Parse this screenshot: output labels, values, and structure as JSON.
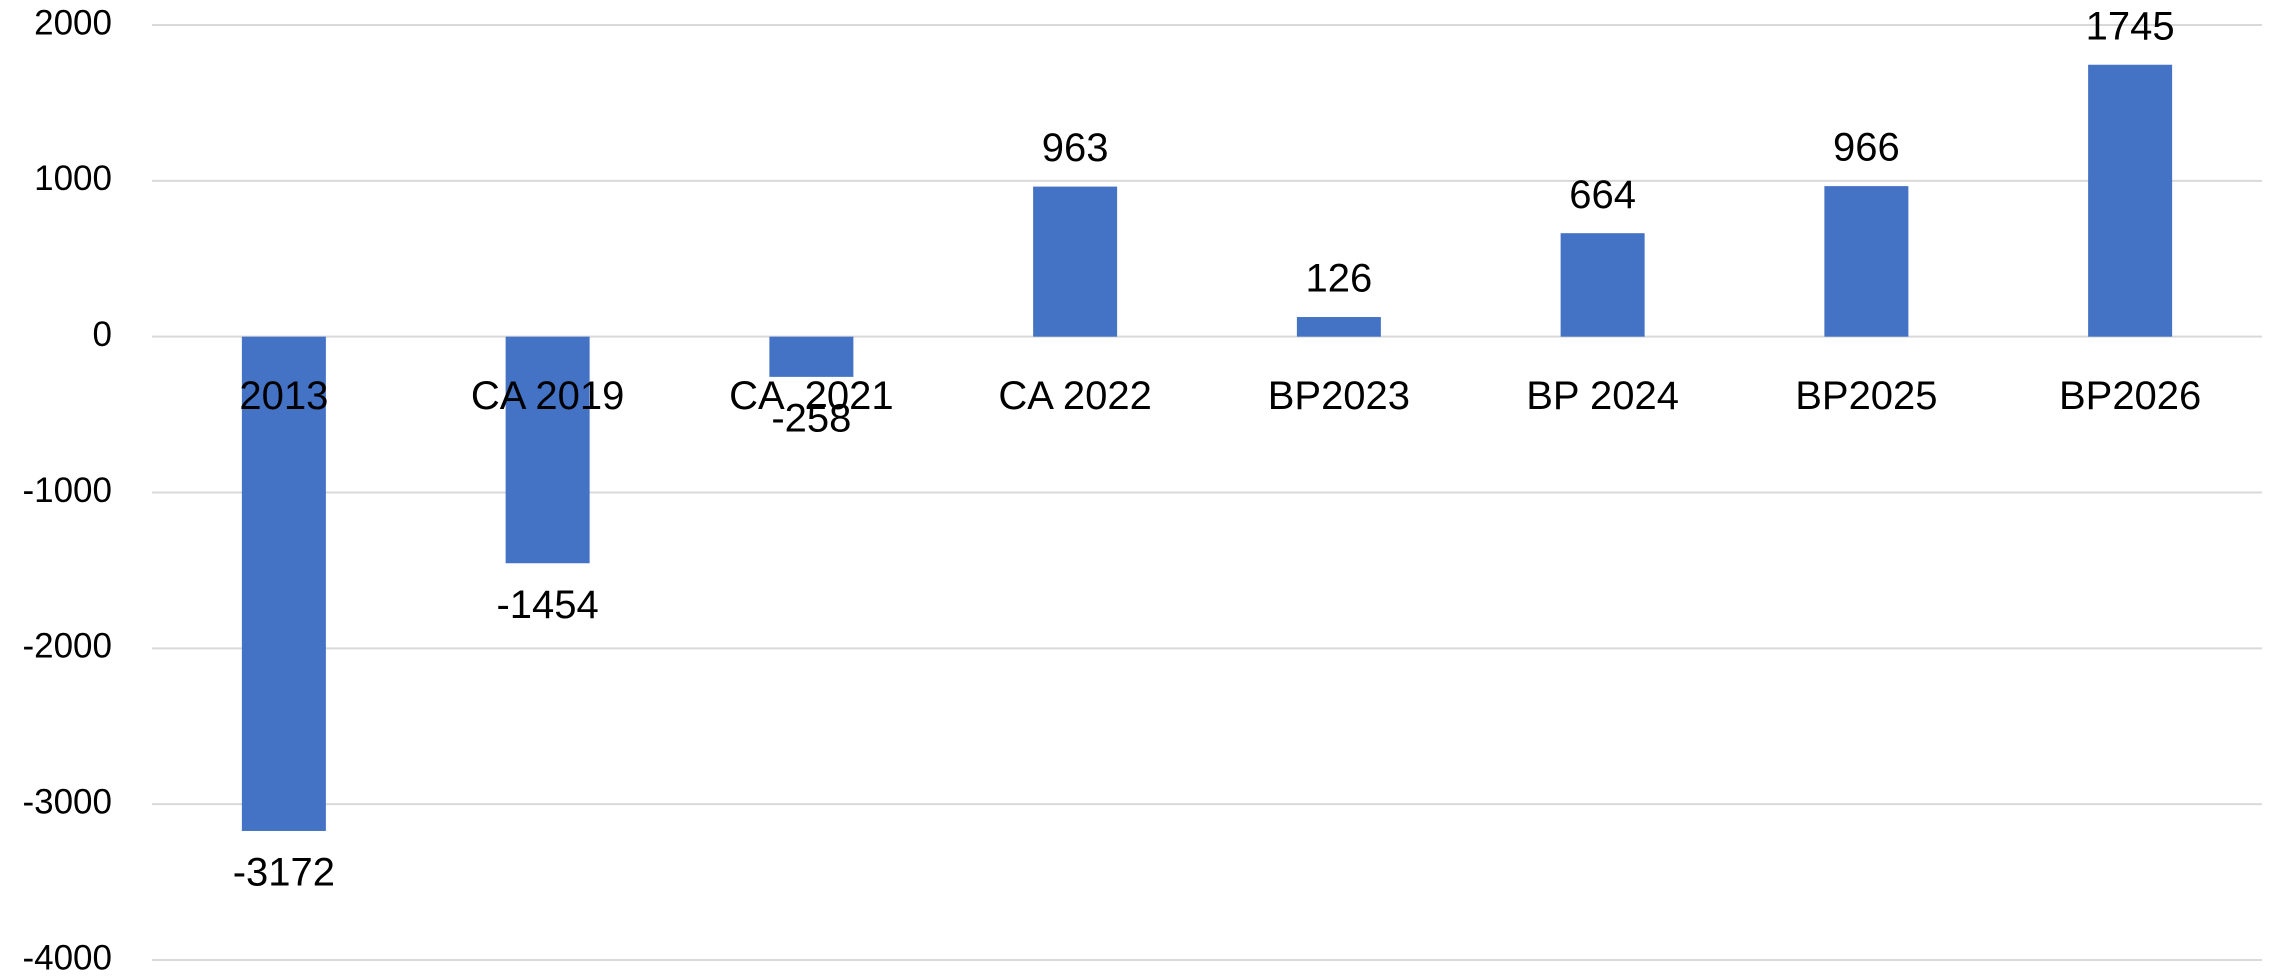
{
  "chart_data": {
    "type": "bar",
    "categories": [
      "2013",
      "CA 2019",
      "CA  2021",
      "CA 2022",
      "BP2023",
      "BP 2024",
      "BP2025",
      "BP2026"
    ],
    "values": [
      -3172,
      -1454,
      -258,
      963,
      126,
      664,
      966,
      1745
    ],
    "color": "#4472c4",
    "ylim": [
      -4000,
      2000
    ],
    "yticks": [
      -4000,
      -3000,
      -2000,
      -1000,
      0,
      1000,
      2000
    ],
    "grid": true
  }
}
